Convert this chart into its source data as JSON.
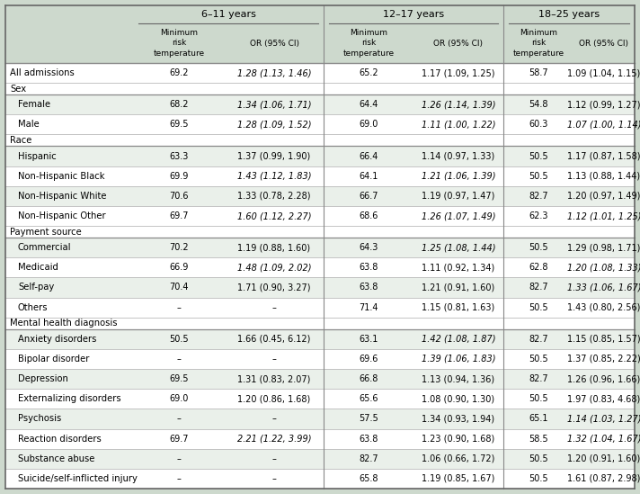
{
  "bg_color": "#cdd9cd",
  "header_bg": "#cdd9cd",
  "row_alt_bg": "#eaf0ea",
  "age_groups": [
    "6–11 years",
    "12–17 years",
    "18–25 years"
  ],
  "rows": [
    {
      "label": "All admissions",
      "section": false,
      "indent": false,
      "data": [
        "69.2",
        "1.28 (1.13, 1.46)",
        "65.2",
        "1.17 (1.09, 1.25)",
        "58.7",
        "1.09 (1.04, 1.15)"
      ],
      "italic": [
        false,
        true,
        false,
        false,
        false,
        false
      ]
    },
    {
      "label": "Sex",
      "section": true,
      "indent": false,
      "data": [
        "",
        "",
        "",
        "",
        "",
        ""
      ],
      "italic": [
        false,
        false,
        false,
        false,
        false,
        false
      ]
    },
    {
      "label": "Female",
      "section": false,
      "indent": true,
      "data": [
        "68.2",
        "1.34 (1.06, 1.71)",
        "64.4",
        "1.26 (1.14, 1.39)",
        "54.8",
        "1.12 (0.99, 1.27)"
      ],
      "italic": [
        false,
        true,
        false,
        true,
        false,
        false
      ]
    },
    {
      "label": "Male",
      "section": false,
      "indent": true,
      "data": [
        "69.5",
        "1.28 (1.09, 1.52)",
        "69.0",
        "1.11 (1.00, 1.22)",
        "60.3",
        "1.07 (1.00, 1.14)"
      ],
      "italic": [
        false,
        true,
        false,
        true,
        false,
        true
      ]
    },
    {
      "label": "Race",
      "section": true,
      "indent": false,
      "data": [
        "",
        "",
        "",
        "",
        "",
        ""
      ],
      "italic": [
        false,
        false,
        false,
        false,
        false,
        false
      ]
    },
    {
      "label": "Hispanic",
      "section": false,
      "indent": true,
      "data": [
        "63.3",
        "1.37 (0.99, 1.90)",
        "66.4",
        "1.14 (0.97, 1.33)",
        "50.5",
        "1.17 (0.87, 1.58)"
      ],
      "italic": [
        false,
        false,
        false,
        false,
        false,
        false
      ]
    },
    {
      "label": "Non-Hispanic Black",
      "section": false,
      "indent": true,
      "data": [
        "69.9",
        "1.43 (1.12, 1.83)",
        "64.1",
        "1.21 (1.06, 1.39)",
        "50.5",
        "1.13 (0.88, 1.44)"
      ],
      "italic": [
        false,
        true,
        false,
        true,
        false,
        false
      ]
    },
    {
      "label": "Non-Hispanic White",
      "section": false,
      "indent": true,
      "data": [
        "70.6",
        "1.33 (0.78, 2.28)",
        "66.7",
        "1.19 (0.97, 1.47)",
        "82.7",
        "1.20 (0.97, 1.49)"
      ],
      "italic": [
        false,
        false,
        false,
        false,
        false,
        false
      ]
    },
    {
      "label": "Non-Hispanic Other",
      "section": false,
      "indent": true,
      "data": [
        "69.7",
        "1.60 (1.12, 2.27)",
        "68.6",
        "1.26 (1.07, 1.49)",
        "62.3",
        "1.12 (1.01, 1.25)"
      ],
      "italic": [
        false,
        true,
        false,
        true,
        false,
        true
      ]
    },
    {
      "label": "Payment source",
      "section": true,
      "indent": false,
      "data": [
        "",
        "",
        "",
        "",
        "",
        ""
      ],
      "italic": [
        false,
        false,
        false,
        false,
        false,
        false
      ]
    },
    {
      "label": "Commercial",
      "section": false,
      "indent": true,
      "data": [
        "70.2",
        "1.19 (0.88, 1.60)",
        "64.3",
        "1.25 (1.08, 1.44)",
        "50.5",
        "1.29 (0.98, 1.71)"
      ],
      "italic": [
        false,
        false,
        false,
        true,
        false,
        false
      ]
    },
    {
      "label": "Medicaid",
      "section": false,
      "indent": true,
      "data": [
        "66.9",
        "1.48 (1.09, 2.02)",
        "63.8",
        "1.11 (0.92, 1.34)",
        "62.8",
        "1.20 (1.08, 1.33)"
      ],
      "italic": [
        false,
        true,
        false,
        false,
        false,
        true
      ]
    },
    {
      "label": "Self-pay",
      "section": false,
      "indent": true,
      "data": [
        "70.4",
        "1.71 (0.90, 3.27)",
        "63.8",
        "1.21 (0.91, 1.60)",
        "82.7",
        "1.33 (1.06, 1.67)"
      ],
      "italic": [
        false,
        false,
        false,
        false,
        false,
        true
      ]
    },
    {
      "label": "Others",
      "section": false,
      "indent": true,
      "data": [
        "–",
        "–",
        "71.4",
        "1.15 (0.81, 1.63)",
        "50.5",
        "1.43 (0.80, 2.56)"
      ],
      "italic": [
        false,
        false,
        false,
        false,
        false,
        false
      ]
    },
    {
      "label": "Mental health diagnosis",
      "section": true,
      "indent": false,
      "data": [
        "",
        "",
        "",
        "",
        "",
        ""
      ],
      "italic": [
        false,
        false,
        false,
        false,
        false,
        false
      ]
    },
    {
      "label": "Anxiety disorders",
      "section": false,
      "indent": true,
      "data": [
        "50.5",
        "1.66 (0.45, 6.12)",
        "63.1",
        "1.42 (1.08, 1.87)",
        "82.7",
        "1.15 (0.85, 1.57)"
      ],
      "italic": [
        false,
        false,
        false,
        true,
        false,
        false
      ]
    },
    {
      "label": "Bipolar disorder",
      "section": false,
      "indent": true,
      "data": [
        "–",
        "–",
        "69.6",
        "1.39 (1.06, 1.83)",
        "50.5",
        "1.37 (0.85, 2.22)"
      ],
      "italic": [
        false,
        false,
        false,
        true,
        false,
        false
      ]
    },
    {
      "label": "Depression",
      "section": false,
      "indent": true,
      "data": [
        "69.5",
        "1.31 (0.83, 2.07)",
        "66.8",
        "1.13 (0.94, 1.36)",
        "82.7",
        "1.26 (0.96, 1.66)"
      ],
      "italic": [
        false,
        false,
        false,
        false,
        false,
        false
      ]
    },
    {
      "label": "Externalizing disorders",
      "section": false,
      "indent": true,
      "data": [
        "69.0",
        "1.20 (0.86, 1.68)",
        "65.6",
        "1.08 (0.90, 1.30)",
        "50.5",
        "1.97 (0.83, 4.68)"
      ],
      "italic": [
        false,
        false,
        false,
        false,
        false,
        false
      ]
    },
    {
      "label": "Psychosis",
      "section": false,
      "indent": true,
      "data": [
        "–",
        "–",
        "57.5",
        "1.34 (0.93, 1.94)",
        "65.1",
        "1.14 (1.03, 1.27)"
      ],
      "italic": [
        false,
        false,
        false,
        false,
        false,
        true
      ]
    },
    {
      "label": "Reaction disorders",
      "section": false,
      "indent": true,
      "data": [
        "69.7",
        "2.21 (1.22, 3.99)",
        "63.8",
        "1.23 (0.90, 1.68)",
        "58.5",
        "1.32 (1.04, 1.67)"
      ],
      "italic": [
        false,
        true,
        false,
        false,
        false,
        true
      ]
    },
    {
      "label": "Substance abuse",
      "section": false,
      "indent": true,
      "data": [
        "–",
        "–",
        "82.7",
        "1.06 (0.66, 1.72)",
        "50.5",
        "1.20 (0.91, 1.60)"
      ],
      "italic": [
        false,
        false,
        false,
        false,
        false,
        false
      ]
    },
    {
      "label": "Suicide/self-inflicted injury",
      "section": false,
      "indent": true,
      "data": [
        "–",
        "–",
        "65.8",
        "1.19 (0.85, 1.67)",
        "50.5",
        "1.61 (0.87, 2.98)"
      ],
      "italic": [
        false,
        false,
        false,
        false,
        false,
        false
      ]
    }
  ]
}
